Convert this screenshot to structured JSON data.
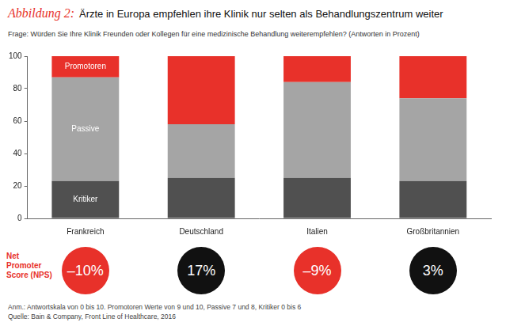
{
  "figure_label": "Abbildung 2:",
  "title": "Ärzte in Europa empfehlen ihre Klinik nur selten als Behandlungszentrum weiter",
  "subtitle": "Frage: Würden Sie Ihre Klinik Freunden oder Kollegen für eine medizinische Behandlung weiterempfehlen? (Antworten in Prozent)",
  "chart_data": {
    "type": "bar",
    "stacked": true,
    "grid": false,
    "categories": [
      "Frankreich",
      "Deutschland",
      "Italien",
      "Großbritannien"
    ],
    "series": [
      {
        "name": "Kritiker",
        "color": "#505050",
        "values": [
          23,
          25,
          25,
          23
        ]
      },
      {
        "name": "Passive",
        "color": "#a5a5a5",
        "values": [
          64,
          33,
          59,
          51
        ]
      },
      {
        "name": "Promotoren",
        "color": "#e8312a",
        "values": [
          13,
          42,
          16,
          26
        ]
      }
    ],
    "ylim": [
      0,
      100
    ],
    "yticks": [
      0,
      20,
      40,
      60,
      80,
      100
    ]
  },
  "nps": {
    "label": "Net Promoter Score (NPS)",
    "values": [
      -10,
      17,
      -9,
      3
    ],
    "value_labels": [
      "–10%",
      "17%",
      "–9%",
      "3%"
    ],
    "colors": [
      "#e8312a",
      "#111111",
      "#e8312a",
      "#111111"
    ]
  },
  "notes": [
    "Anm.: Antwortskala von 0 bis 10. Promotoren Werte von 9 und 10, Passive 7 und 8, Kritiker 0 bis 6",
    "Quelle: Bain & Company, Front Line of Healthcare, 2016"
  ]
}
